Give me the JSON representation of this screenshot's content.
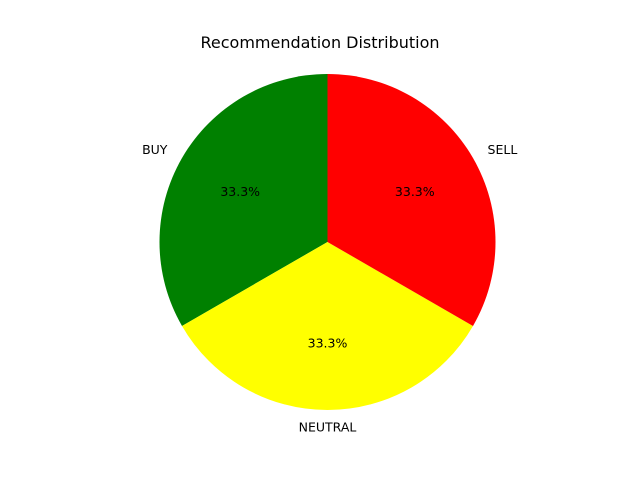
{
  "chart_data": {
    "type": "pie",
    "title": "Recommendation Distribution",
    "slices": [
      {
        "label": "BUY",
        "value": 33.3,
        "percent_label": "33.3%",
        "color": "#008000"
      },
      {
        "label": "NEUTRAL",
        "value": 33.3,
        "percent_label": "33.3%",
        "color": "#ffff00"
      },
      {
        "label": "SELL",
        "value": 33.3,
        "percent_label": "33.3%",
        "color": "#ff0000"
      }
    ],
    "start_angle_deg": 90,
    "direction": "counterclockwise",
    "legend": "none"
  }
}
